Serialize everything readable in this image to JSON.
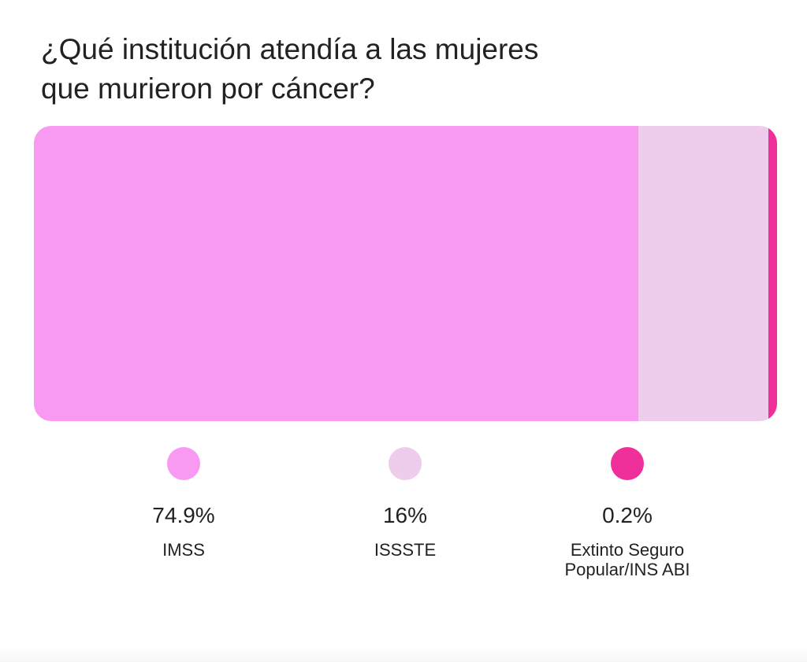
{
  "chart_data": {
    "type": "bar",
    "subtype": "stacked-horizontal-100",
    "title": "¿Qué institución atendía a las mujeres que murieron por cáncer?",
    "categories": [
      "IMSS",
      "ISSSTE",
      "Extinto Seguro Popular/INS ABI"
    ],
    "values": [
      74.9,
      16,
      0.2
    ],
    "value_labels": [
      "74.9%",
      "16%",
      "0.2%"
    ],
    "colors": [
      "#f89af2",
      "#eecdec",
      "#f0309a"
    ],
    "legend_placement": "bottom"
  }
}
